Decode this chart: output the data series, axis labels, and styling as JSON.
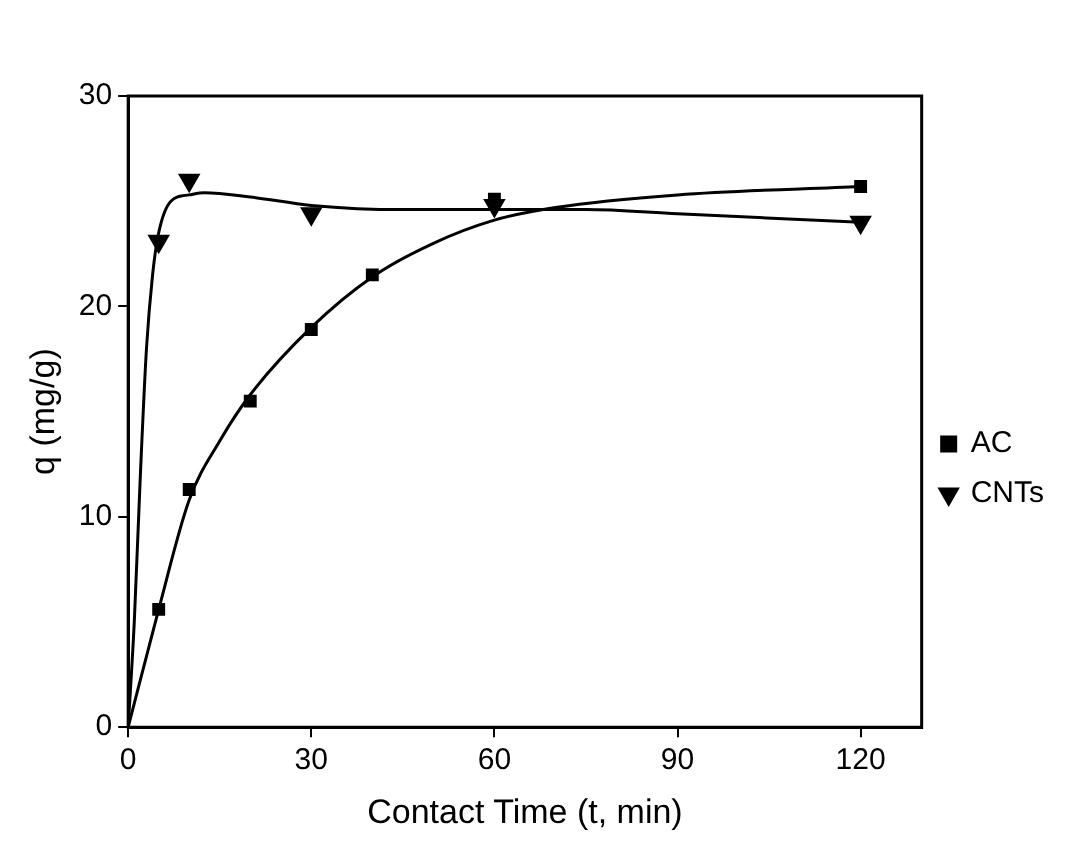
{
  "chart_data": {
    "type": "scatter",
    "xlabel": "Contact Time (t, min)",
    "ylabel": "q (mg/g)",
    "xlim": [
      0,
      130
    ],
    "xticks": [
      0,
      30,
      60,
      90,
      120
    ],
    "ylim": [
      0,
      30
    ],
    "yticks": [
      0,
      10,
      20,
      30
    ],
    "grid": false,
    "legend": "right",
    "series": [
      {
        "name": "AC",
        "marker": "square",
        "color": "#000000",
        "x": [
          5,
          10,
          20,
          30,
          40,
          60,
          120
        ],
        "values": [
          5.6,
          11.3,
          15.5,
          18.9,
          21.5,
          25.1,
          25.7
        ]
      },
      {
        "name": "CNTs",
        "marker": "triangle",
        "color": "#000000",
        "x": [
          5,
          10,
          30,
          60,
          120
        ],
        "values": [
          23.1,
          26.0,
          24.4,
          24.8,
          24.0
        ]
      },
      {
        "type": "line",
        "marker": "none",
        "color": "#000000",
        "x": [
          0,
          5,
          10,
          15,
          20,
          30,
          40,
          50,
          60,
          70,
          90,
          120
        ],
        "values": [
          0,
          5.6,
          10.8,
          13.6,
          15.8,
          19,
          21.4,
          23,
          24.1,
          24.7,
          25.3,
          25.7
        ]
      },
      {
        "type": "line",
        "marker": "none",
        "color": "#000000",
        "x": [
          0,
          1,
          2,
          3,
          4,
          5,
          7,
          10,
          12.5,
          20,
          30,
          45,
          60,
          75,
          90,
          120
        ],
        "values": [
          0,
          5,
          12,
          18,
          21.5,
          23.5,
          25,
          25.3,
          25.4,
          25.2,
          24.8,
          24.6,
          24.6,
          24.6,
          24.4,
          24.0
        ]
      }
    ]
  }
}
